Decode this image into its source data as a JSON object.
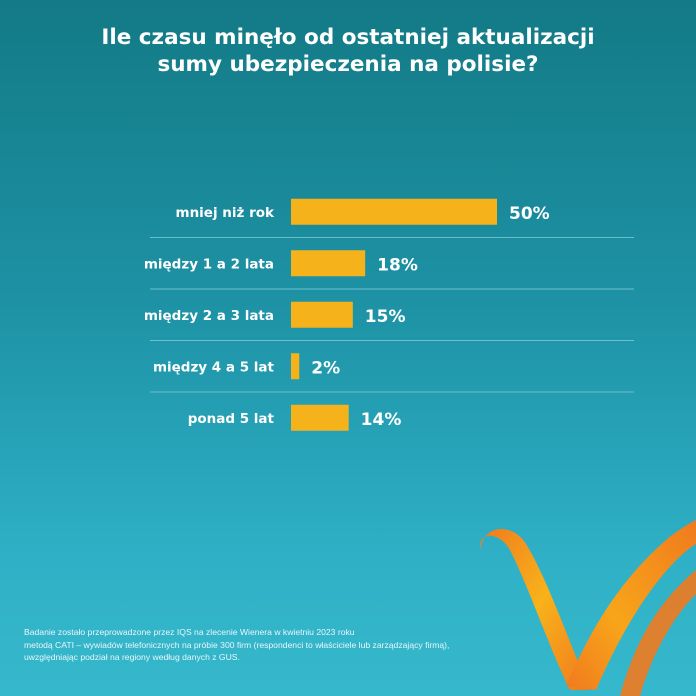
{
  "title_lines": [
    "Ile czasu minęło od ostatniej aktualizacji",
    "sumy ubezpieczenia na polisie?"
  ],
  "chart_data": {
    "type": "bar",
    "orientation": "horizontal",
    "categories": [
      "mniej niż rok",
      "między 1 a 2 lata",
      "między 2 a 3 lata",
      "między 4 a 5 lat",
      "ponad 5 lat"
    ],
    "values": [
      50,
      18,
      15,
      2,
      14
    ],
    "value_labels": [
      "50%",
      "18%",
      "15%",
      "2%",
      "14%"
    ],
    "unit": "%",
    "grid": false,
    "legend": "none"
  },
  "colors": {
    "bar": "#f6b21b",
    "separator": "#8fd3de",
    "logo_orange": "#f07a1e",
    "logo_yellow": "#f8b21a"
  },
  "footnote_lines": [
    "Badanie zostało przeprowadzone przez IQS na zlecenie Wienera w kwietniu 2023 roku",
    "metodą CATI – wywiadów telefonicznych na próbie 300 firm (respondenci to właściciele lub zarządzający firmą),",
    "uwzględniając podział na regiony według danych z GUS."
  ],
  "logo_icon": "wiener-w-swoosh-icon"
}
